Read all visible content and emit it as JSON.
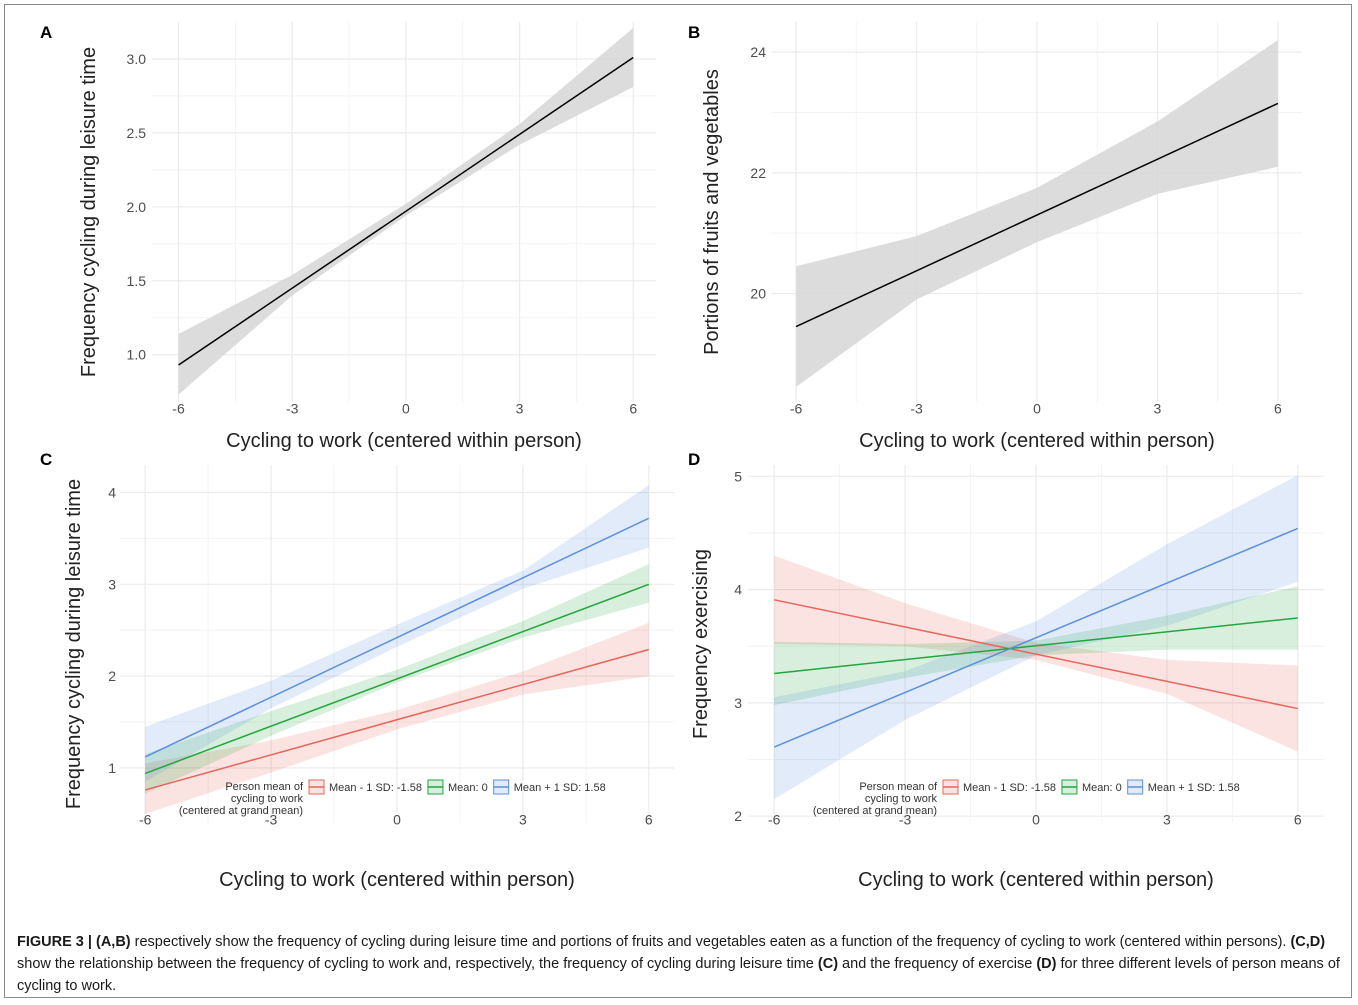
{
  "caption": {
    "label": "FIGURE 3 |",
    "p1_bold": "(A,B)",
    "p1_text": " respectively show the frequency of cycling during leisure time and portions of fruits and vegetables eaten as a function of the frequency of cycling to work (centered within persons). ",
    "p2_bold": "(C,D)",
    "p2_text": " show the relationship between the frequency of cycling to work and, respectively, the frequency of cycling during leisure time ",
    "p3_bold": "(C)",
    "p3_text": " and the frequency of exercise ",
    "p4_bold": "(D)",
    "p4_text": " for three different levels of person means of cycling to work."
  },
  "colors": {
    "low": "#e8645a",
    "mid": "#22a63d",
    "high": "#5b8fde",
    "single_line": "#000000",
    "single_band": "#d6d6d6",
    "grid": "#ebebeb"
  },
  "legend": {
    "title_line1": "Person mean of",
    "title_line2": "cycling to work",
    "title_line3": "(centered at grand mean)"
  },
  "chart_data": [
    {
      "panel": "A",
      "type": "line",
      "xlabel": "Cycling to work (centered within person)",
      "ylabel": "Frequency cycling during leisure time",
      "xlim": [
        -6.7,
        6.6
      ],
      "ylim": [
        0.68,
        3.25
      ],
      "xticks": [
        -6,
        -3,
        0,
        3,
        6
      ],
      "yticks": [
        1.0,
        1.5,
        2.0,
        2.5,
        3.0
      ],
      "xtick_labels": [
        "-6",
        "-3",
        "0",
        "3",
        "6"
      ],
      "ytick_labels": [
        "1.0",
        "1.5",
        "2.0",
        "2.5",
        "3.0"
      ],
      "grid": true,
      "series": [
        {
          "x": [
            -6,
            6
          ],
          "y": [
            0.93,
            3.01
          ],
          "band_x": [
            -6,
            -3,
            0,
            3,
            6
          ],
          "band_lower": [
            0.73,
            1.4,
            1.94,
            2.42,
            2.81
          ],
          "band_upper": [
            1.14,
            1.54,
            2.02,
            2.56,
            3.21
          ]
        }
      ]
    },
    {
      "panel": "B",
      "type": "line",
      "xlabel": "Cycling to work (centered within person)",
      "ylabel": "Portions of fruits and vegetables",
      "xlim": [
        -6.6,
        6.6
      ],
      "ylim": [
        18.2,
        24.5
      ],
      "xticks": [
        -6,
        -3,
        0,
        3,
        6
      ],
      "yticks": [
        20,
        22,
        24
      ],
      "xtick_labels": [
        "-6",
        "-3",
        "0",
        "3",
        "6"
      ],
      "ytick_labels": [
        "20",
        "22",
        "24"
      ],
      "grid": true,
      "series": [
        {
          "x": [
            -6,
            6
          ],
          "y": [
            19.45,
            23.15
          ],
          "band_x": [
            -6,
            -3,
            0,
            3,
            6
          ],
          "band_lower": [
            18.45,
            19.9,
            20.85,
            21.65,
            22.1
          ],
          "band_upper": [
            20.45,
            20.95,
            21.75,
            22.85,
            24.2
          ]
        }
      ]
    },
    {
      "panel": "C",
      "type": "line",
      "xlabel": "Cycling to work (centered within person)",
      "ylabel": "Frequency cycling during leisure time",
      "xlim": [
        -6.6,
        6.6
      ],
      "ylim": [
        0.4,
        4.3
      ],
      "xticks": [
        -6,
        -3,
        0,
        3,
        6
      ],
      "yticks": [
        1,
        2,
        3,
        4
      ],
      "xtick_labels": [
        "-6",
        "-3",
        "0",
        "3",
        "6"
      ],
      "ytick_labels": [
        "1",
        "2",
        "3",
        "4"
      ],
      "grid": true,
      "legend": "bottom",
      "series": [
        {
          "name": "Mean - 1 SD: -1.58",
          "x": [
            -6,
            6
          ],
          "y": [
            0.76,
            2.29
          ],
          "band_x": [
            -6,
            -3,
            0,
            3,
            6
          ],
          "band_lower": [
            0.5,
            0.95,
            1.42,
            1.8,
            2.0
          ],
          "band_upper": [
            1.05,
            1.3,
            1.63,
            2.05,
            2.58
          ]
        },
        {
          "name": "Mean: 0",
          "x": [
            -6,
            6
          ],
          "y": [
            0.94,
            3.0
          ],
          "band_x": [
            -6,
            -3,
            0,
            3,
            6
          ],
          "band_lower": [
            0.72,
            1.35,
            1.93,
            2.42,
            2.8
          ],
          "band_upper": [
            1.15,
            1.62,
            2.07,
            2.6,
            3.22
          ]
        },
        {
          "name": "Mean + 1 SD: 1.58",
          "x": [
            -6,
            6
          ],
          "y": [
            1.12,
            3.72
          ],
          "band_x": [
            -6,
            -3,
            0,
            3,
            6
          ],
          "band_lower": [
            0.85,
            1.65,
            2.32,
            2.95,
            3.4
          ],
          "band_upper": [
            1.45,
            1.95,
            2.56,
            3.15,
            4.08
          ]
        }
      ]
    },
    {
      "panel": "D",
      "type": "line",
      "xlabel": "Cycling to work (centered within person)",
      "ylabel": "Frequency exercising",
      "xlim": [
        -6.6,
        6.6
      ],
      "ylim": [
        1.94,
        5.1
      ],
      "xticks": [
        -6,
        -3,
        0,
        3,
        6
      ],
      "yticks": [
        2,
        3,
        4,
        5
      ],
      "xtick_labels": [
        "-6",
        "-3",
        "0",
        "3",
        "6"
      ],
      "ytick_labels": [
        "2",
        "3",
        "4",
        "5"
      ],
      "grid": true,
      "legend": "bottom",
      "series": [
        {
          "name": "Mean - 1 SD: -1.58",
          "x": [
            -6,
            6
          ],
          "y": [
            3.91,
            2.95
          ],
          "band_x": [
            -6,
            -3,
            0,
            3,
            6
          ],
          "band_lower": [
            3.52,
            3.5,
            3.38,
            3.08,
            2.57
          ],
          "band_upper": [
            4.3,
            3.88,
            3.53,
            3.38,
            3.33
          ]
        },
        {
          "name": "Mean: 0",
          "x": [
            -6,
            6
          ],
          "y": [
            3.26,
            3.75
          ],
          "band_x": [
            -6,
            -3,
            0,
            3,
            6
          ],
          "band_lower": [
            2.98,
            3.22,
            3.42,
            3.47,
            3.47
          ],
          "band_upper": [
            3.54,
            3.52,
            3.55,
            3.77,
            4.03
          ]
        },
        {
          "name": "Mean + 1 SD: 1.58",
          "x": [
            -6,
            6
          ],
          "y": [
            2.61,
            4.54
          ],
          "band_x": [
            -6,
            -3,
            0,
            3,
            6
          ],
          "band_lower": [
            2.15,
            2.85,
            3.42,
            3.68,
            4.07
          ],
          "band_upper": [
            3.05,
            3.28,
            3.72,
            4.4,
            5.01
          ]
        }
      ]
    }
  ]
}
